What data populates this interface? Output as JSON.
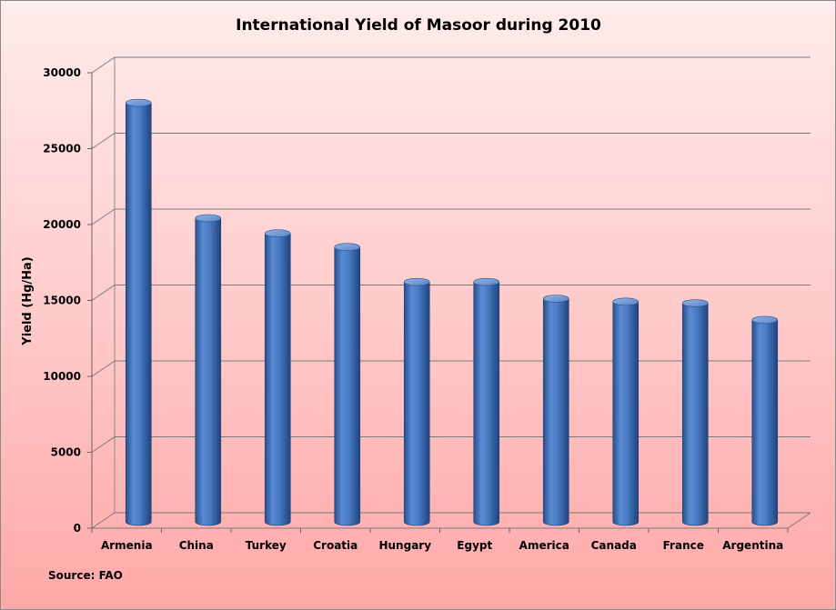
{
  "chart_data": {
    "type": "bar",
    "title": "International Yield of Masoor during 2010",
    "xlabel": "",
    "ylabel": "Yield (Hg/Ha)",
    "categories": [
      "Armenia",
      "China",
      "Turkey",
      "Croatia",
      "Hungary",
      "Egypt",
      "America",
      "Canada",
      "France",
      "Argentina"
    ],
    "values": [
      27600,
      20000,
      19000,
      18100,
      15800,
      15800,
      14700,
      14500,
      14400,
      13300
    ],
    "ylim": [
      0,
      30000
    ],
    "yticks": [
      "0",
      "5000",
      "10000",
      "15000",
      "20000",
      "25000",
      "30000"
    ],
    "grid": true,
    "style_3d": "cylinder",
    "bar_color": "#4a7bc4",
    "source": "Source: FAO"
  }
}
